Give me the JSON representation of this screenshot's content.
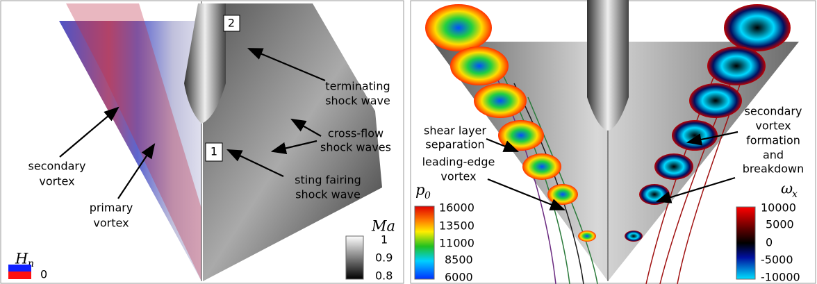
{
  "left_panel": {
    "markers": [
      "2",
      "1"
    ],
    "annotations": [
      {
        "lines": [
          "terminating",
          "shock wave"
        ]
      },
      {
        "lines": [
          "cross-flow",
          "shock waves"
        ]
      },
      {
        "lines": [
          "sting fairing",
          "shock wave"
        ]
      },
      {
        "lines": [
          "secondary",
          "vortex"
        ]
      },
      {
        "lines": [
          "primary",
          "vortex"
        ]
      }
    ],
    "colorbar_hn": {
      "symbol": "H",
      "subscript": "n",
      "labels": [
        0
      ]
    },
    "colorbar_ma": {
      "symbol": "Ma",
      "labels": [
        1,
        0.9,
        0.8
      ]
    }
  },
  "right_panel": {
    "annotations": [
      {
        "lines": [
          "shear layer",
          "separation"
        ]
      },
      {
        "lines": [
          "leading-edge",
          "vortex"
        ]
      },
      {
        "lines": [
          "secondary",
          "vortex",
          "formation",
          "and",
          "breakdown"
        ]
      }
    ],
    "colorbar_p0": {
      "symbol": "p",
      "subscript": "0",
      "labels": [
        16000,
        13500,
        11000,
        8500,
        6000
      ]
    },
    "colorbar_wx": {
      "symbol": "ω",
      "subscript": "x",
      "labels": [
        10000,
        5000,
        0,
        -5000,
        -10000
      ]
    }
  }
}
